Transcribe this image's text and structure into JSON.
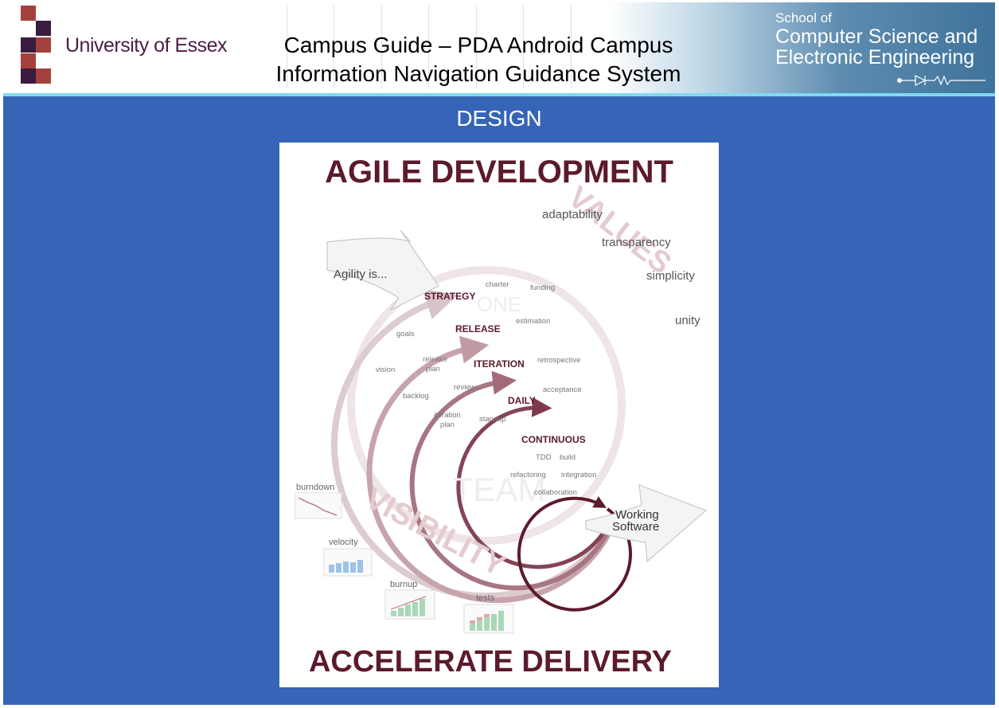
{
  "header": {
    "university": "University of Essex",
    "title_line1": "Campus Guide – PDA Android Campus",
    "title_line2": "Information Navigation Guidance System",
    "school_line1": "School of",
    "school_line2": "Computer Science and",
    "school_line3": "Electronic Engineering"
  },
  "colors": {
    "logo_dark": "#3a1c40",
    "logo_red": "#a4413c",
    "body_bg": "#3664b6",
    "accent_line": "#7fd9f2",
    "poster_maroon": "#5c1a2a"
  },
  "section_title": "DESIGN",
  "poster": {
    "heading": "AGILE DEVELOPMENT",
    "footer": "ACCELERATE DELIVERY",
    "values_word": "VALUES",
    "visibility_word": "VISIBILITY",
    "one_word": "ONE",
    "team_word": "TEAM",
    "values": [
      "adaptability",
      "transparency",
      "simplicity",
      "unity"
    ],
    "agility": "Agility is...",
    "output_line1": "Working",
    "output_line2": "Software",
    "levels": [
      "STRATEGY",
      "RELEASE",
      "ITERATION",
      "DAILY",
      "CONTINUOUS"
    ],
    "practices": {
      "charter": "charter",
      "funding": "funding",
      "estimation": "estimation",
      "goals": "goals",
      "release": "release",
      "plan": "plan",
      "vision": "vision",
      "retrospective": "retrospective",
      "review": "review",
      "backlog": "backlog",
      "acceptance": "acceptance",
      "iteration": "iteration",
      "standup": "standup",
      "tdd": "TDD",
      "build": "build",
      "refactoring": "refactoring",
      "integration": "integration",
      "collaboration": "collaboration"
    },
    "metrics": [
      "burndown",
      "velocity",
      "burnup",
      "tests"
    ]
  }
}
